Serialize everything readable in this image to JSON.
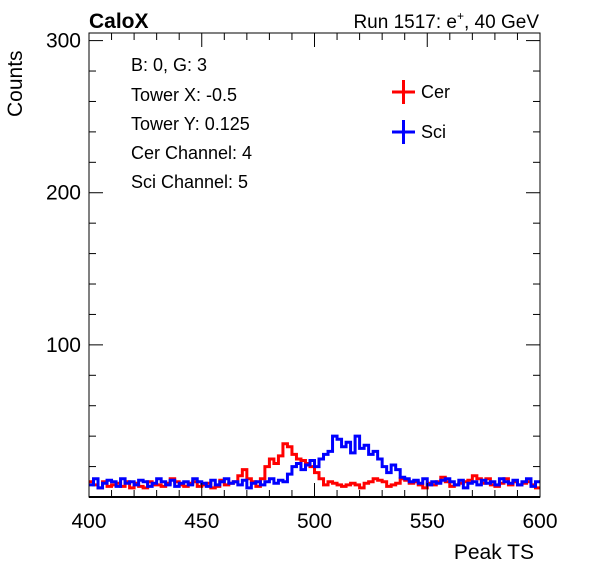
{
  "header": {
    "left_label": "CaloX",
    "run_label": "Run 1517: e",
    "run_sup": "+",
    "run_tail": ", 40 GeV"
  },
  "info_box": [
    "B: 0, G: 3",
    "Tower X: -0.5",
    "Tower Y: 0.125",
    "Cer Channel: 4",
    "Sci Channel: 5"
  ],
  "chart_data": {
    "type": "line",
    "xlabel": "Peak TS",
    "ylabel": "Counts",
    "xlim": [
      400,
      600
    ],
    "ylim": [
      0,
      305
    ],
    "x_ticks": [
      400,
      450,
      500,
      550,
      600
    ],
    "y_ticks": [
      100,
      200,
      300
    ],
    "legend_position": "top-right",
    "grid": false,
    "bin_width": 2,
    "series": [
      {
        "name": "Cer",
        "color": "#ff0000",
        "bin_start": 400,
        "values": [
          10,
          8,
          6,
          10,
          7,
          8,
          9,
          7,
          10,
          6,
          9,
          7,
          6,
          10,
          8,
          8,
          7,
          9,
          12,
          10,
          8,
          7,
          9,
          10,
          7,
          8,
          9,
          6,
          7,
          11,
          8,
          9,
          10,
          14,
          18,
          12,
          10,
          7,
          12,
          20,
          25,
          22,
          27,
          35,
          33,
          28,
          25,
          24,
          22,
          20,
          16,
          12,
          8,
          10,
          9,
          8,
          7,
          8,
          9,
          8,
          6,
          9,
          10,
          12,
          11,
          10,
          7,
          8,
          9,
          12,
          11,
          9,
          10,
          8,
          6,
          9,
          8,
          10,
          13,
          10,
          7,
          8,
          9,
          10,
          11,
          14,
          12,
          9,
          12,
          8,
          7,
          9,
          12,
          8,
          10,
          8,
          9,
          10,
          8,
          6
        ]
      },
      {
        "name": "Sci",
        "color": "#0000ff",
        "bin_start": 400,
        "values": [
          8,
          12,
          6,
          9,
          11,
          10,
          7,
          12,
          9,
          10,
          8,
          11,
          10,
          7,
          9,
          12,
          10,
          8,
          11,
          7,
          9,
          10,
          8,
          12,
          10,
          9,
          7,
          11,
          8,
          10,
          12,
          9,
          10,
          8,
          11,
          6,
          9,
          10,
          8,
          10,
          12,
          9,
          11,
          10,
          15,
          20,
          22,
          18,
          21,
          24,
          20,
          25,
          28,
          30,
          40,
          38,
          33,
          36,
          29,
          40,
          32,
          34,
          28,
          30,
          25,
          20,
          16,
          21,
          18,
          13,
          12,
          10,
          11,
          9,
          12,
          8,
          10,
          9,
          11,
          12,
          10,
          8,
          11,
          6,
          9,
          10,
          8,
          11,
          9,
          10,
          8,
          12,
          10,
          9,
          11,
          8,
          10,
          12,
          7,
          10
        ]
      }
    ]
  }
}
